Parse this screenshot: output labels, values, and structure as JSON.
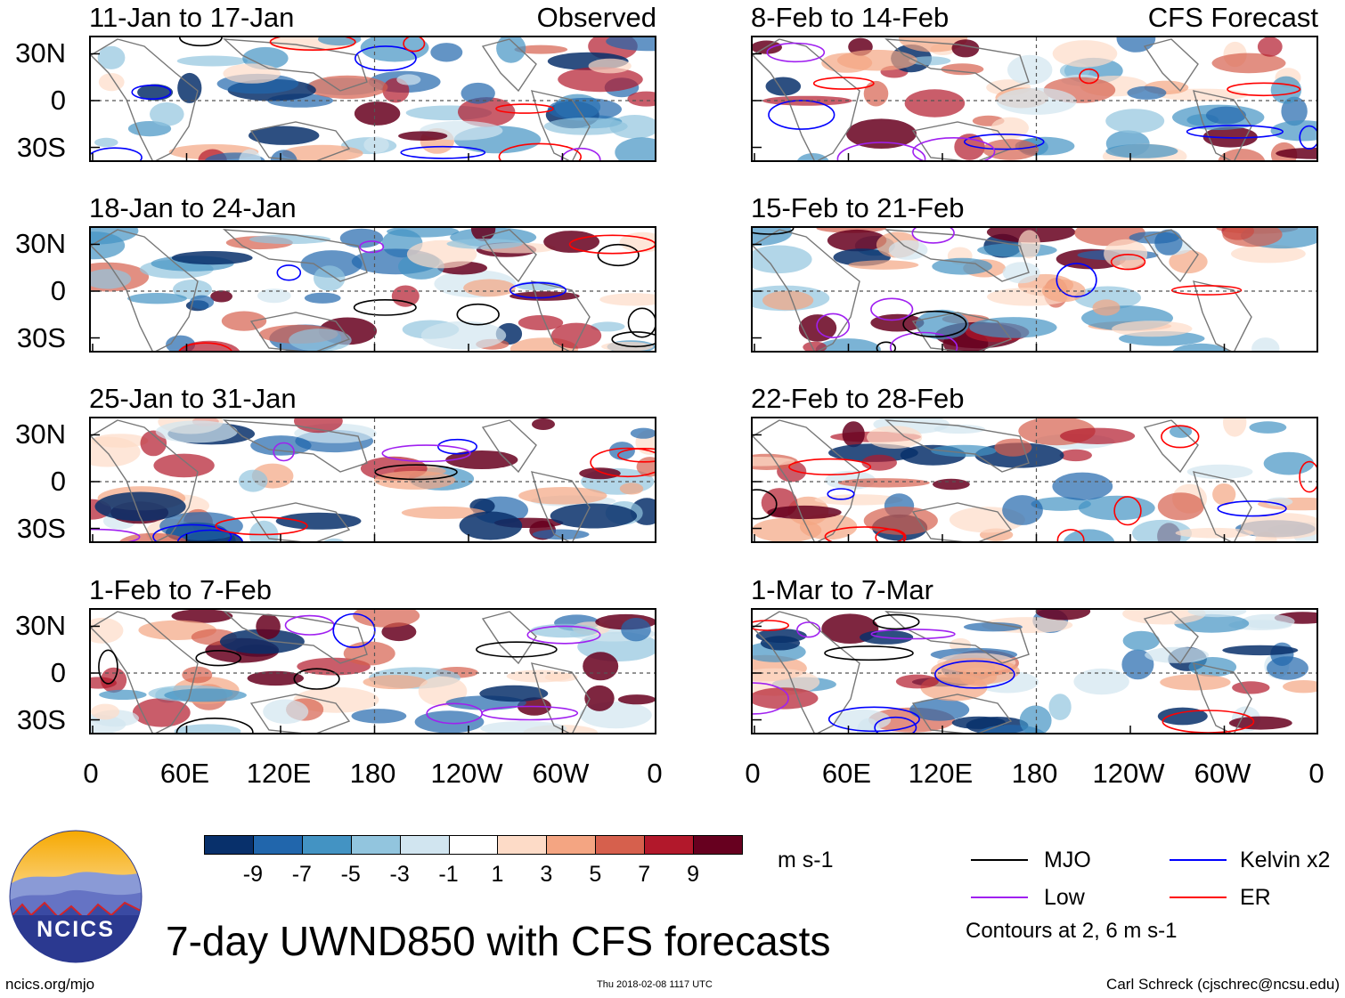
{
  "chart_data": {
    "type": "heatmap",
    "title": "7-day UWND850 with CFS forecasts",
    "variable": "UWND850",
    "units": "m s-1",
    "x_ticks": [
      "0",
      "60E",
      "120E",
      "180",
      "120W",
      "60W",
      "0"
    ],
    "y_ticks": [
      "30N",
      "0",
      "30S"
    ],
    "colorbar": {
      "labels": [
        "-9",
        "-7",
        "-5",
        "-3",
        "-1",
        "1",
        "3",
        "5",
        "7",
        "9"
      ],
      "colors": [
        "#08306b",
        "#2166ac",
        "#4393c3",
        "#92c5de",
        "#d1e5f0",
        "#ffffff",
        "#fddbc7",
        "#f4a582",
        "#d6604d",
        "#b2182b",
        "#67001f"
      ]
    },
    "legend": [
      {
        "label": "MJO",
        "color": "#000000"
      },
      {
        "label": "Kelvin x2",
        "color": "#0000ff"
      },
      {
        "label": "Low",
        "color": "#a020f0"
      },
      {
        "label": "ER",
        "color": "#ff0000"
      }
    ],
    "contour_note": "Contours at 2, 6 m s-1",
    "panels": [
      {
        "title": "11-Jan to 17-Jan",
        "label": "Observed"
      },
      {
        "title": "18-Jan to 24-Jan",
        "label": ""
      },
      {
        "title": "25-Jan to 31-Jan",
        "label": ""
      },
      {
        "title": "1-Feb to 7-Feb",
        "label": ""
      },
      {
        "title": "8-Feb to 14-Feb",
        "label": "CFS Forecast"
      },
      {
        "title": "15-Feb to 21-Feb",
        "label": ""
      },
      {
        "title": "22-Feb to 28-Feb",
        "label": ""
      },
      {
        "title": "1-Mar to 7-Mar",
        "label": ""
      }
    ]
  },
  "logo_text": "NCICS",
  "footer": {
    "site": "ncics.org/mjo",
    "timestamp": "Thu 2018-02-08 1117 UTC",
    "author": "Carl Schreck (cjschrec@ncsu.edu)"
  }
}
